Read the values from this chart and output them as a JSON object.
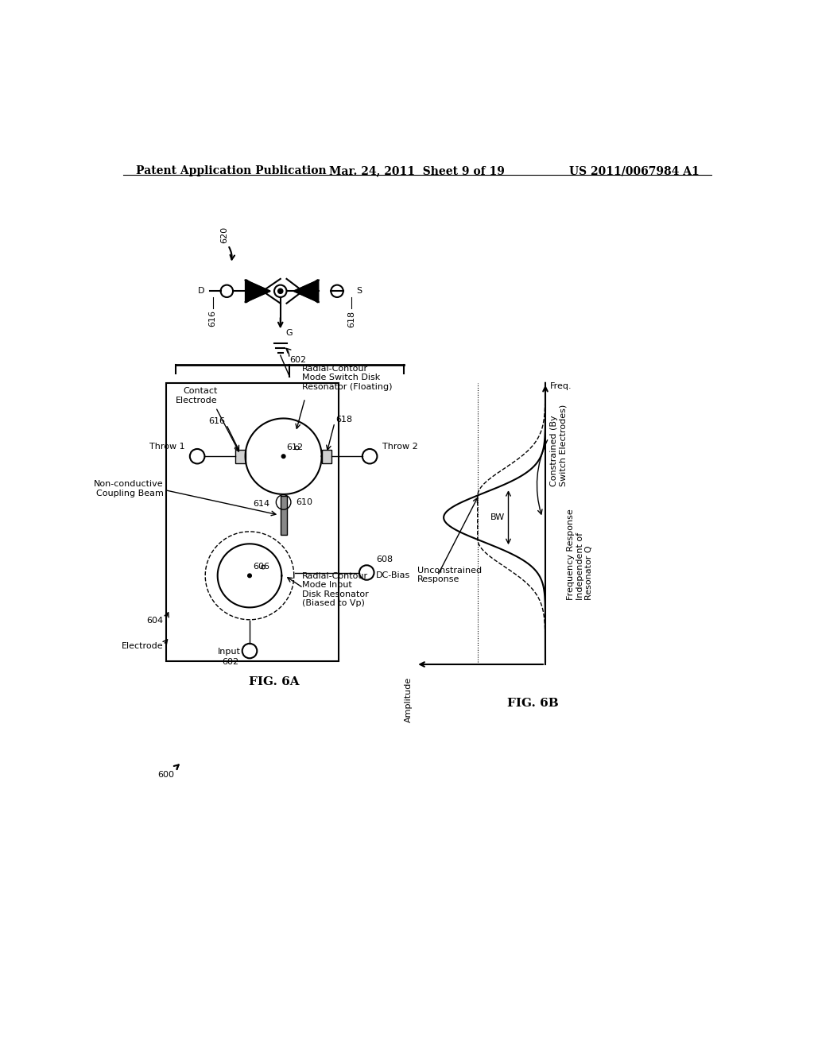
{
  "bg_color": "#ffffff",
  "header_left": "Patent Application Publication",
  "header_center": "Mar. 24, 2011  Sheet 9 of 19",
  "header_right": "US 2011/0067984 A1",
  "fig_label_6A": "FIG. 6A",
  "fig_label_6B": "FIG. 6B",
  "label_600": "600",
  "label_602": "602",
  "label_604": "604",
  "label_606": "606",
  "label_608": "608",
  "label_610": "610",
  "label_612": "612",
  "label_614": "614",
  "label_616": "616",
  "label_618": "618",
  "label_620": "620",
  "text_throw1": "Throw 1",
  "text_throw2": "Throw 2",
  "text_contact_electrode": "Contact\nElectrode",
  "text_radial_switch": "Radial-Contour\nMode Switch Disk\nResonator (Floating)",
  "text_radial_input": "Radial-Contour\nMode Input\nDisk Resonator\n(Biased to Vp)",
  "text_non_conductive": "Non-conductive\nCoupling Beam",
  "text_electrode": "Electrode",
  "text_input": "Input",
  "text_dc_bias": "DC-Bias",
  "text_amplitude": "Amplitude",
  "text_freq": "Freq.",
  "text_bw": "BW",
  "text_unconstrained": "Unconstrained\nResponse",
  "text_constrained": "Constrained (By\nSwitch Electrodes)",
  "text_freq_response": "Frequency Response\nIndependent of\nResonator Q",
  "text_G": "G"
}
